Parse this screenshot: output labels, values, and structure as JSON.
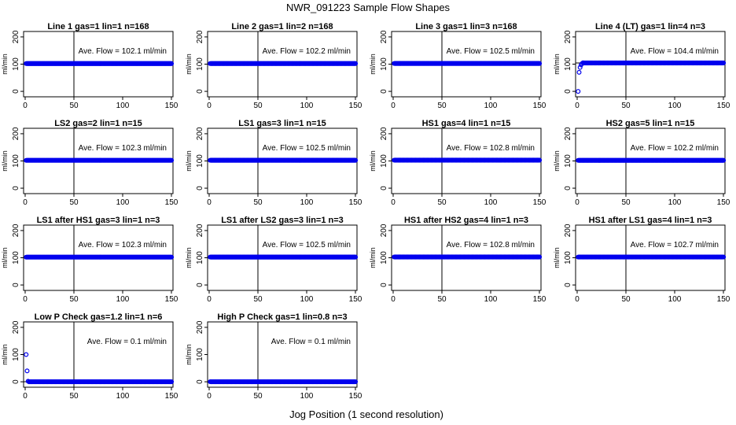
{
  "title": "NWR_091223  Sample Flow Shapes",
  "xlabel": "Jog Position (1 second resolution)",
  "colors": {
    "points": "#0000ee",
    "axes": "#000000",
    "background": "#ffffff"
  },
  "chart_data": [
    {
      "type": "scatter",
      "title": "Line 1 gas=1 lin=1 n=168",
      "ylabel": "ml/min",
      "annotation": "Ave. Flow =  102.1  ml/min",
      "xlim": [
        0,
        150
      ],
      "ylim": [
        -20,
        220
      ],
      "xticks": [
        0,
        50,
        100,
        150
      ],
      "yticks": [
        0,
        100,
        200
      ],
      "vline": 50,
      "hline": 102.1,
      "series": [
        {
          "x": [
            1,
            150
          ],
          "y": [
            102.1,
            102.1
          ]
        }
      ]
    },
    {
      "type": "scatter",
      "title": "Line 2 gas=1 lin=2 n=168",
      "ylabel": "ml/min",
      "annotation": "Ave. Flow =  102.2  ml/min",
      "xlim": [
        0,
        150
      ],
      "ylim": [
        -20,
        220
      ],
      "xticks": [
        0,
        50,
        100,
        150
      ],
      "yticks": [
        0,
        100,
        200
      ],
      "vline": 50,
      "hline": 102.2,
      "series": [
        {
          "x": [
            1,
            150
          ],
          "y": [
            102.2,
            102.2
          ]
        }
      ]
    },
    {
      "type": "scatter",
      "title": "Line 3 gas=1 lin=3 n=168",
      "ylabel": "ml/min",
      "annotation": "Ave. Flow =  102.5  ml/min",
      "xlim": [
        0,
        150
      ],
      "ylim": [
        -20,
        220
      ],
      "xticks": [
        0,
        50,
        100,
        150
      ],
      "yticks": [
        0,
        100,
        200
      ],
      "vline": 50,
      "hline": 102.5,
      "series": [
        {
          "x": [
            1,
            150
          ],
          "y": [
            102.5,
            102.5
          ]
        }
      ]
    },
    {
      "type": "scatter",
      "title": "Line 4 (LT) gas=1 lin=4 n=3",
      "ylabel": "ml/min",
      "annotation": "Ave. Flow =  104.4  ml/min",
      "xlim": [
        0,
        150
      ],
      "ylim": [
        -20,
        220
      ],
      "xticks": [
        0,
        50,
        100,
        150
      ],
      "yticks": [
        0,
        100,
        200
      ],
      "vline": 50,
      "hline": 104.4,
      "series": [
        {
          "x": [
            1,
            2,
            3,
            4,
            5,
            6,
            150
          ],
          "y": [
            0,
            70,
            88,
            97,
            102,
            105,
            104.4
          ]
        }
      ]
    },
    {
      "type": "scatter",
      "title": "LS2 gas=2 lin=1 n=15",
      "ylabel": "ml/min",
      "annotation": "Ave. Flow =  102.3  ml/min",
      "xlim": [
        0,
        150
      ],
      "ylim": [
        -20,
        220
      ],
      "xticks": [
        0,
        50,
        100,
        150
      ],
      "yticks": [
        0,
        100,
        200
      ],
      "vline": 50,
      "hline": 102.3,
      "series": [
        {
          "x": [
            1,
            150
          ],
          "y": [
            102.3,
            102.3
          ]
        }
      ]
    },
    {
      "type": "scatter",
      "title": "LS1 gas=3 lin=1 n=15",
      "ylabel": "ml/min",
      "annotation": "Ave. Flow =  102.5  ml/min",
      "xlim": [
        0,
        150
      ],
      "ylim": [
        -20,
        220
      ],
      "xticks": [
        0,
        50,
        100,
        150
      ],
      "yticks": [
        0,
        100,
        200
      ],
      "vline": 50,
      "hline": 102.5,
      "series": [
        {
          "x": [
            1,
            150
          ],
          "y": [
            102.5,
            102.5
          ]
        }
      ]
    },
    {
      "type": "scatter",
      "title": "HS1 gas=4 lin=1 n=15",
      "ylabel": "ml/min",
      "annotation": "Ave. Flow =  102.8  ml/min",
      "xlim": [
        0,
        150
      ],
      "ylim": [
        -20,
        220
      ],
      "xticks": [
        0,
        50,
        100,
        150
      ],
      "yticks": [
        0,
        100,
        200
      ],
      "vline": 50,
      "hline": 102.8,
      "series": [
        {
          "x": [
            1,
            150
          ],
          "y": [
            102.8,
            102.8
          ]
        }
      ]
    },
    {
      "type": "scatter",
      "title": "HS2 gas=5 lin=1 n=15",
      "ylabel": "ml/min",
      "annotation": "Ave. Flow =  102.2  ml/min",
      "xlim": [
        0,
        150
      ],
      "ylim": [
        -20,
        220
      ],
      "xticks": [
        0,
        50,
        100,
        150
      ],
      "yticks": [
        0,
        100,
        200
      ],
      "vline": 50,
      "hline": 102.2,
      "series": [
        {
          "x": [
            1,
            150
          ],
          "y": [
            102.2,
            102.2
          ]
        }
      ]
    },
    {
      "type": "scatter",
      "title": "LS1 after HS1 gas=3 lin=1 n=3",
      "ylabel": "ml/min",
      "annotation": "Ave. Flow =  102.3  ml/min",
      "xlim": [
        0,
        150
      ],
      "ylim": [
        -20,
        220
      ],
      "xticks": [
        0,
        50,
        100,
        150
      ],
      "yticks": [
        0,
        100,
        200
      ],
      "vline": 50,
      "hline": 102.3,
      "series": [
        {
          "x": [
            1,
            150
          ],
          "y": [
            102.3,
            102.3
          ]
        }
      ]
    },
    {
      "type": "scatter",
      "title": "LS1 after LS2 gas=3 lin=1 n=3",
      "ylabel": "ml/min",
      "annotation": "Ave. Flow =  102.5  ml/min",
      "xlim": [
        0,
        150
      ],
      "ylim": [
        -20,
        220
      ],
      "xticks": [
        0,
        50,
        100,
        150
      ],
      "yticks": [
        0,
        100,
        200
      ],
      "vline": 50,
      "hline": 102.5,
      "series": [
        {
          "x": [
            1,
            150
          ],
          "y": [
            102.5,
            102.5
          ]
        }
      ]
    },
    {
      "type": "scatter",
      "title": "HS1 after HS2 gas=4 lin=1 n=3",
      "ylabel": "ml/min",
      "annotation": "Ave. Flow =  102.8  ml/min",
      "xlim": [
        0,
        150
      ],
      "ylim": [
        -20,
        220
      ],
      "xticks": [
        0,
        50,
        100,
        150
      ],
      "yticks": [
        0,
        100,
        200
      ],
      "vline": 50,
      "hline": 102.8,
      "series": [
        {
          "x": [
            1,
            150
          ],
          "y": [
            102.8,
            102.8
          ]
        }
      ]
    },
    {
      "type": "scatter",
      "title": "HS1 after LS1 gas=4 lin=1 n=3",
      "ylabel": "ml/min",
      "annotation": "Ave. Flow =  102.7  ml/min",
      "xlim": [
        0,
        150
      ],
      "ylim": [
        -20,
        220
      ],
      "xticks": [
        0,
        50,
        100,
        150
      ],
      "yticks": [
        0,
        100,
        200
      ],
      "vline": 50,
      "hline": 102.7,
      "series": [
        {
          "x": [
            1,
            150
          ],
          "y": [
            102.7,
            102.7
          ]
        }
      ]
    },
    {
      "type": "scatter",
      "title": "Low P Check gas=1.2 lin=1 n=6",
      "ylabel": "ml/min",
      "annotation": "Ave. Flow =  0.1  ml/min",
      "xlim": [
        0,
        150
      ],
      "ylim": [
        -20,
        220
      ],
      "xticks": [
        0,
        50,
        100,
        150
      ],
      "yticks": [
        0,
        100,
        200
      ],
      "vline": 50,
      "hline": 0.1,
      "series": [
        {
          "x": [
            1,
            2,
            3,
            150
          ],
          "y": [
            100,
            40,
            2,
            0.1
          ]
        }
      ]
    },
    {
      "type": "scatter",
      "title": "High P Check gas=1 lin=0.8 n=3",
      "ylabel": "ml/min",
      "annotation": "Ave. Flow =  0.1  ml/min",
      "xlim": [
        0,
        150
      ],
      "ylim": [
        -20,
        220
      ],
      "xticks": [
        0,
        50,
        100,
        150
      ],
      "yticks": [
        0,
        100,
        200
      ],
      "vline": 50,
      "hline": 0.1,
      "series": [
        {
          "x": [
            1,
            150
          ],
          "y": [
            0.1,
            0.1
          ]
        }
      ]
    }
  ]
}
